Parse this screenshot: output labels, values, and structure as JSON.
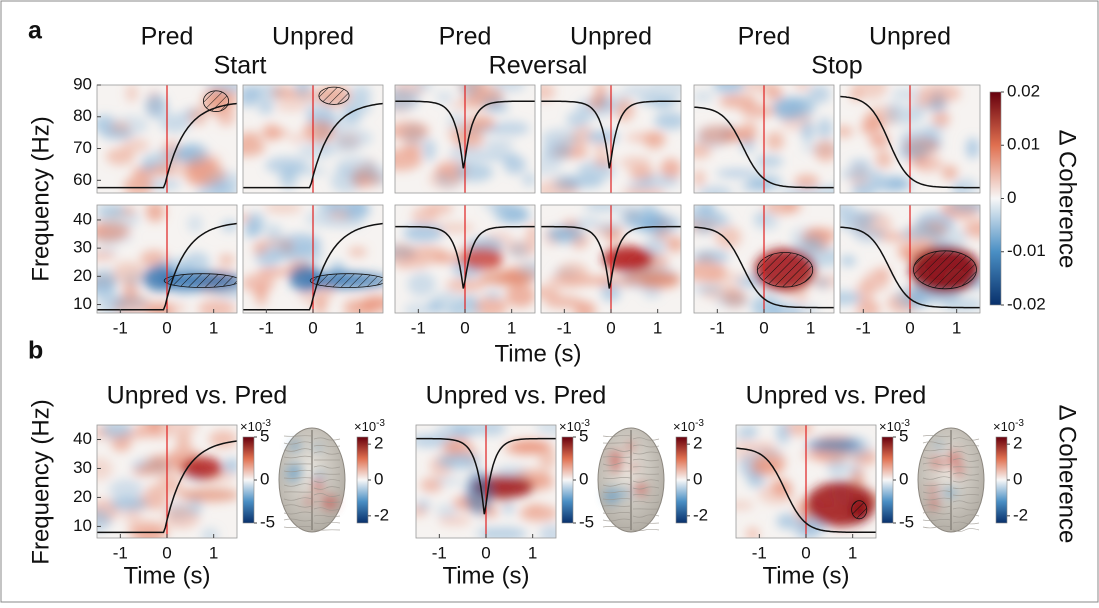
{
  "panel_a": {
    "label": "a",
    "conditions": [
      "Start",
      "Reversal",
      "Stop"
    ],
    "columns": [
      "Pred",
      "Unpred"
    ],
    "y_label": "Frequency (Hz)",
    "x_label": "Time (s)",
    "xlim": [
      -1.5,
      1.5
    ],
    "xticks": [
      -1,
      0,
      1
    ],
    "top_ylim": [
      56,
      90
    ],
    "top_yticks": [
      60,
      70,
      80,
      90
    ],
    "bottom_ylim": [
      7,
      45.3
    ],
    "bottom_yticks": [
      10,
      20,
      30,
      40
    ],
    "colorbar": {
      "label": "Δ Coherence",
      "lim": [
        -0.02,
        0.02
      ],
      "ticks": [
        0.02,
        0.01,
        0,
        -0.01,
        -0.02
      ]
    }
  },
  "panel_b": {
    "label": "b",
    "titles": [
      "Unpred vs. Pred",
      "Unpred vs. Pred",
      "Unpred vs. Pred"
    ],
    "y_label": "Frequency (Hz)",
    "x_label": "Time (s)",
    "xlim": [
      -1.5,
      1.5
    ],
    "xticks": [
      -1,
      0,
      1
    ],
    "ylim": [
      6,
      45
    ],
    "yticks": [
      10,
      20,
      30,
      40
    ],
    "colorbar_label": "Δ Coherence",
    "scale_base": "×10",
    "scale_exponent": "-3",
    "map_colorbar": {
      "lim": [
        -5,
        5
      ],
      "ticks": [
        5,
        0,
        -5
      ]
    },
    "brain_colorbar": {
      "lim": [
        -2.4,
        2.4
      ],
      "ticks": [
        2,
        0,
        -2
      ]
    }
  }
}
